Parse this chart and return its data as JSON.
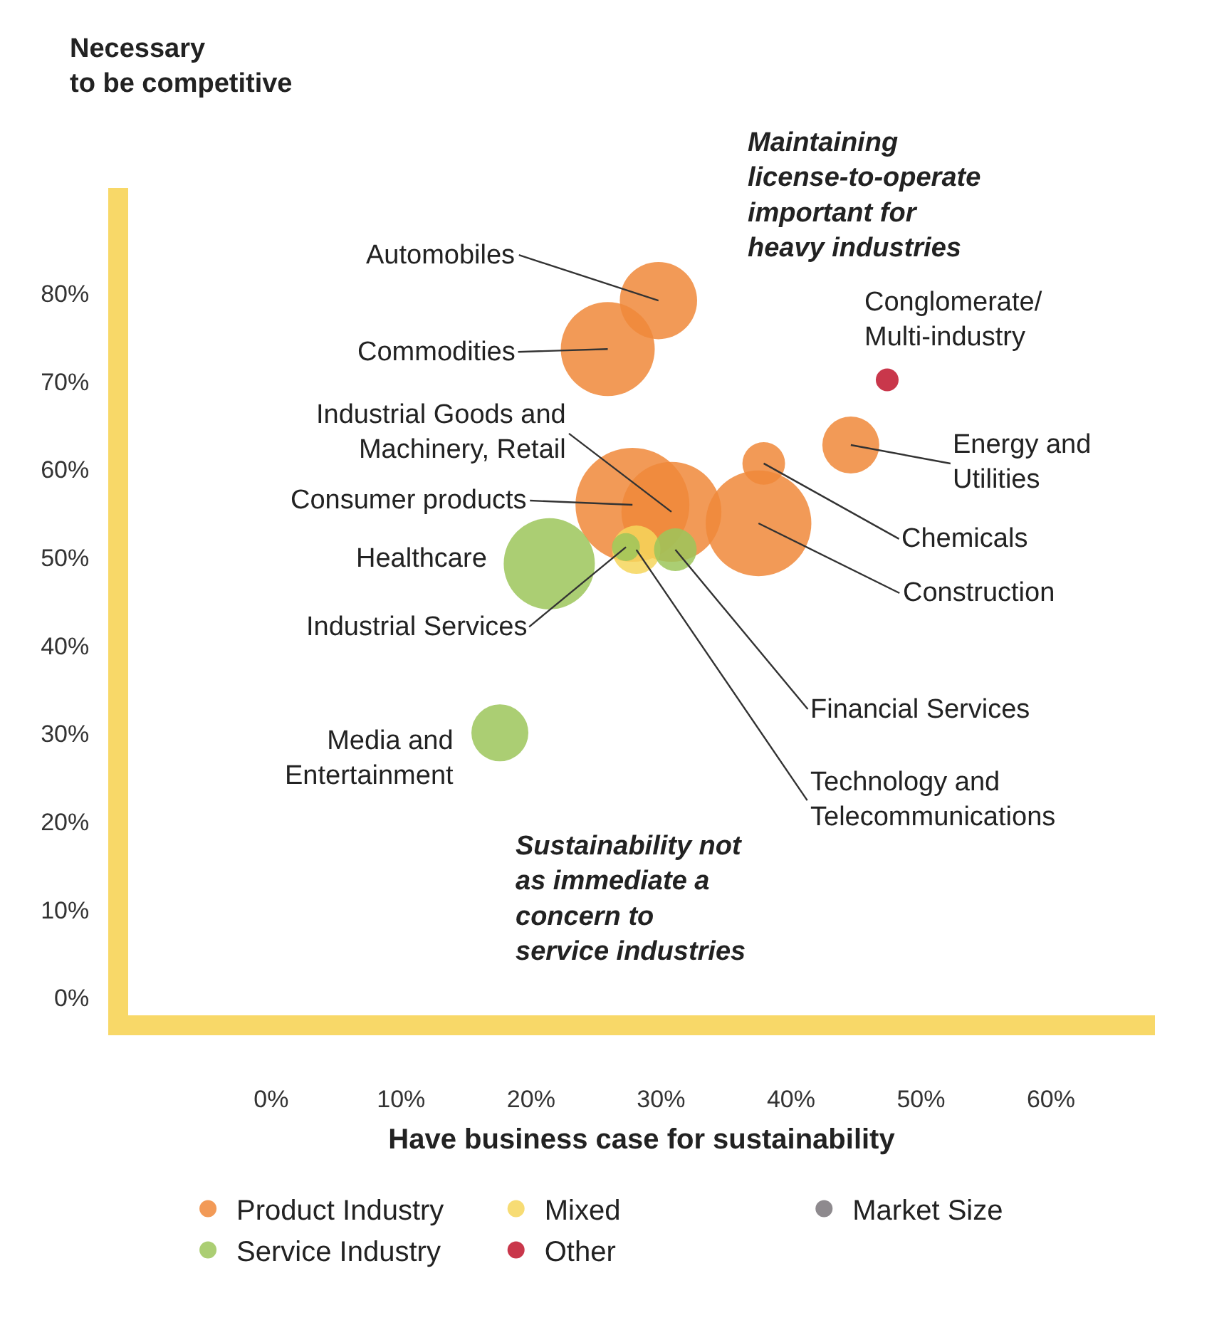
{
  "chart_data": {
    "type": "bubble",
    "xlabel": "Have business case for sustainability",
    "ylabel": "Necessary\nto be competitive",
    "legend_title": "Market Size",
    "xlim": [
      -11,
      68
    ],
    "ylim": [
      -2,
      92
    ],
    "xticks": [
      {
        "value": 0,
        "label": "0%"
      },
      {
        "value": 10,
        "label": "10%"
      },
      {
        "value": 20,
        "label": "20%"
      },
      {
        "value": 30,
        "label": "30%"
      },
      {
        "value": 40,
        "label": "40%"
      },
      {
        "value": 50,
        "label": "50%"
      },
      {
        "value": 60,
        "label": "60%"
      }
    ],
    "yticks": [
      {
        "value": 0,
        "label": "0%"
      },
      {
        "value": 10,
        "label": "10%"
      },
      {
        "value": 20,
        "label": "20%"
      },
      {
        "value": 30,
        "label": "30%"
      },
      {
        "value": 40,
        "label": "40%"
      },
      {
        "value": 50,
        "label": "50%"
      },
      {
        "value": 60,
        "label": "60%"
      },
      {
        "value": 70,
        "label": "70%"
      },
      {
        "value": 80,
        "label": "80%"
      }
    ],
    "legend": "bottom",
    "series": [
      {
        "name": "Product Industry",
        "color": "#f0883a",
        "x": [
          29.8,
          25.9,
          27.8,
          30.8,
          44.6,
          37.9,
          37.5
        ],
        "values": [
          79.2,
          73.7,
          56.0,
          55.2,
          62.8,
          60.7,
          53.9
        ],
        "sizes": [
          0.46,
          0.68,
          1,
          0.77,
          0.25,
          0.14,
          0.86
        ]
      },
      {
        "name": "Mixed",
        "color": "#f6d65c",
        "x": [
          28.1
        ],
        "values": [
          50.9
        ],
        "sizes": [
          0.18
        ]
      },
      {
        "name": "Service Industry",
        "color": "#9cc55a",
        "x": [
          21.4,
          27.3,
          31.1,
          17.6
        ],
        "values": [
          49.3,
          51.2,
          50.9,
          30.1
        ],
        "sizes": [
          0.64,
          0.06,
          0.14,
          0.25
        ]
      },
      {
        "name": "Other",
        "color": "#c0142c",
        "x": [
          47.4
        ],
        "values": [
          70.2
        ],
        "sizes": [
          0.04
        ]
      }
    ],
    "annotations": [
      {
        "text": "Automobiles",
        "x": 29.8,
        "y": 79.2
      },
      {
        "text": "Commodities",
        "x": 25.9,
        "y": 73.7
      },
      {
        "text": "Industrial Goods and\nMachinery, Retail",
        "x": 30.8,
        "y": 55.2
      },
      {
        "text": "Consumer products",
        "x": 27.8,
        "y": 56.0
      },
      {
        "text": "Healthcare",
        "x": 21.4,
        "y": 49.3
      },
      {
        "text": "Industrial Services",
        "x": 27.3,
        "y": 51.2
      },
      {
        "text": "Media and\nEntertainment",
        "x": 17.6,
        "y": 30.1
      },
      {
        "text": "Conglomerate/\nMulti-industry",
        "x": 47.4,
        "y": 70.2
      },
      {
        "text": "Energy and\nUtilities",
        "x": 44.6,
        "y": 62.8
      },
      {
        "text": "Chemicals",
        "x": 37.9,
        "y": 60.7
      },
      {
        "text": "Construction",
        "x": 37.5,
        "y": 53.9
      },
      {
        "text": "Financial Services",
        "x": 31.1,
        "y": 50.9
      },
      {
        "text": "Technology and\nTelecommunications",
        "x": 28.1,
        "y": 50.9
      },
      "Maintaining\nlicense-to-operate\nimportant for\nheavy industries",
      "Sustainability not\nas immediate a\nconcern to\nservice industries"
    ]
  }
}
